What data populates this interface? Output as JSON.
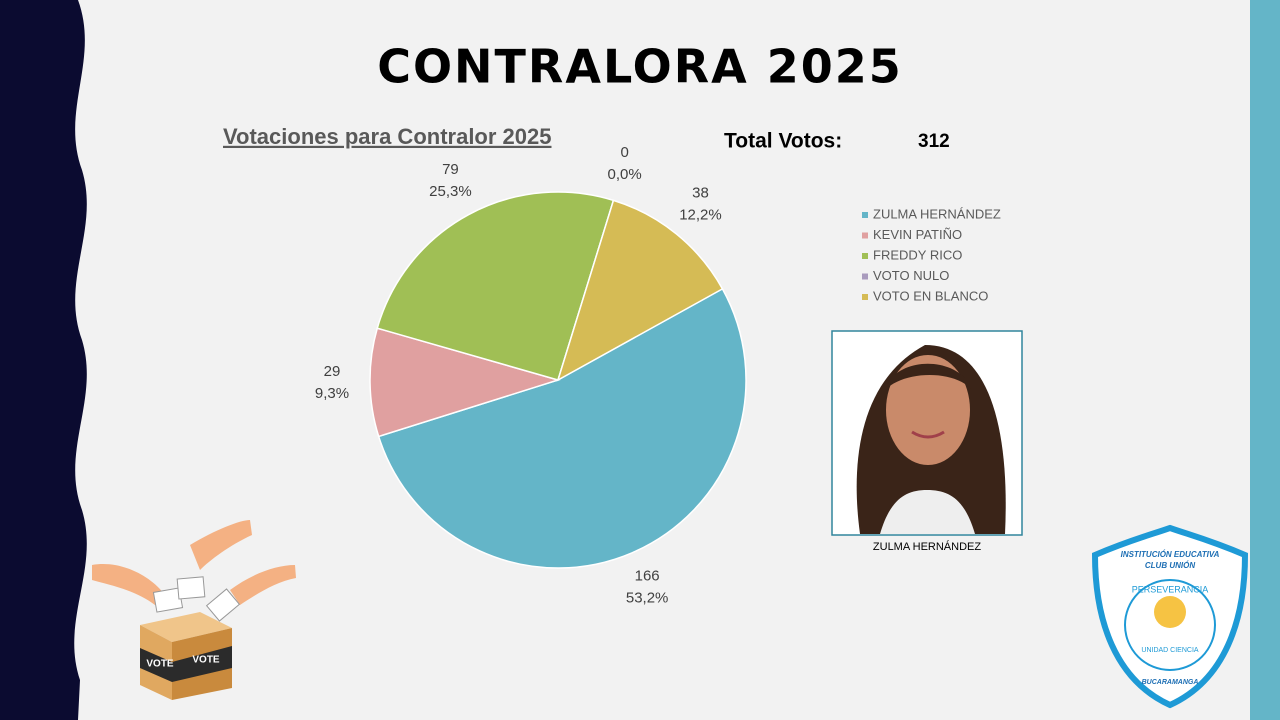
{
  "slide": {
    "title": "CONTRALORA 2025",
    "total_label": "Total Votos:",
    "total": 312,
    "photo_caption": "ZULMA HERNÁNDEZ",
    "logo": {
      "line1": "INSTITUCIÓN EDUCATIVA",
      "line2": "CLUB UNIÓN",
      "motto": "PERSEVERANCIA",
      "subtitle": "UNIDAD CIENCIA",
      "city": "BUCARAMANGA"
    },
    "ballot_label": "VOTE"
  },
  "chart_data": {
    "type": "pie",
    "title": "Votaciones para Contralor 2025",
    "categories": [
      "ZULMA HERNÁNDEZ",
      "KEVIN PATIÑO",
      "FREDDY RICO",
      "VOTO NULO",
      "VOTO EN BLANCO"
    ],
    "values": [
      166,
      29,
      79,
      0,
      38
    ],
    "percentage_labels": [
      "53,2%",
      "9,3%",
      "25,3%",
      "0,0%",
      "12,2%"
    ],
    "colors": [
      "#64b5c8",
      "#e0a0a0",
      "#a0bf55",
      "#a99bbd",
      "#d5bb55"
    ],
    "start_angle": 61,
    "legend": "right"
  }
}
